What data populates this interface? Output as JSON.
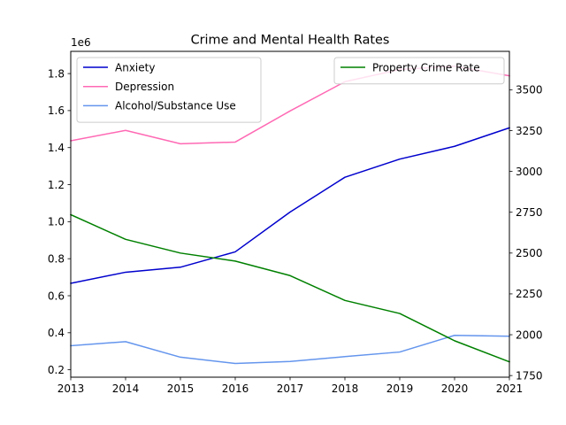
{
  "chart_data": {
    "type": "line",
    "title": "Crime and Mental Health Rates",
    "x": [
      2013,
      2014,
      2015,
      2016,
      2017,
      2018,
      2019,
      2020,
      2021
    ],
    "xlim": [
      2013,
      2021
    ],
    "x_ticks": [
      "2013",
      "2014",
      "2015",
      "2016",
      "2017",
      "2018",
      "2019",
      "2020",
      "2021"
    ],
    "y_left": {
      "lim": [
        0.16,
        1.92
      ],
      "ticks": [
        0.2,
        0.4,
        0.6,
        0.8,
        1.0,
        1.2,
        1.4,
        1.6,
        1.8
      ],
      "tick_labels": [
        "0.2",
        "0.4",
        "0.6",
        "0.8",
        "1.0",
        "1.2",
        "1.4",
        "1.6",
        "1.8"
      ],
      "offset_label": "1e6"
    },
    "y_right": {
      "lim": [
        1740,
        3735
      ],
      "ticks": [
        1750,
        2000,
        2250,
        2500,
        2750,
        3000,
        3250,
        3500
      ],
      "tick_labels": [
        "1750",
        "2000",
        "2250",
        "2500",
        "2750",
        "3000",
        "3250",
        "3500"
      ]
    },
    "series": [
      {
        "name": "Anxiety",
        "axis": "left",
        "color": "#0000cd",
        "values": [
          0.667,
          0.727,
          0.754,
          0.837,
          1.052,
          1.24,
          1.338,
          1.407,
          1.507
        ]
      },
      {
        "name": "Depression",
        "axis": "left",
        "color": "#ff69b4",
        "values": [
          1.437,
          1.493,
          1.421,
          1.43,
          1.598,
          1.756,
          1.822,
          1.84,
          1.788
        ]
      },
      {
        "name": "Alcohol/Substance Use",
        "axis": "left",
        "color": "#6495ed",
        "values": [
          0.33,
          0.352,
          0.268,
          0.234,
          0.245,
          0.271,
          0.296,
          0.386,
          0.381
        ]
      },
      {
        "name": "Property Crime Rate",
        "axis": "right",
        "color": "#008000",
        "values": [
          2735,
          2584,
          2500,
          2451,
          2362,
          2210,
          2130,
          1963,
          1834
        ]
      }
    ],
    "legends": [
      {
        "placement": "upper-left",
        "entries": [
          0,
          1,
          2
        ]
      },
      {
        "placement": "upper-right",
        "entries": [
          3
        ]
      }
    ],
    "grid": false
  }
}
